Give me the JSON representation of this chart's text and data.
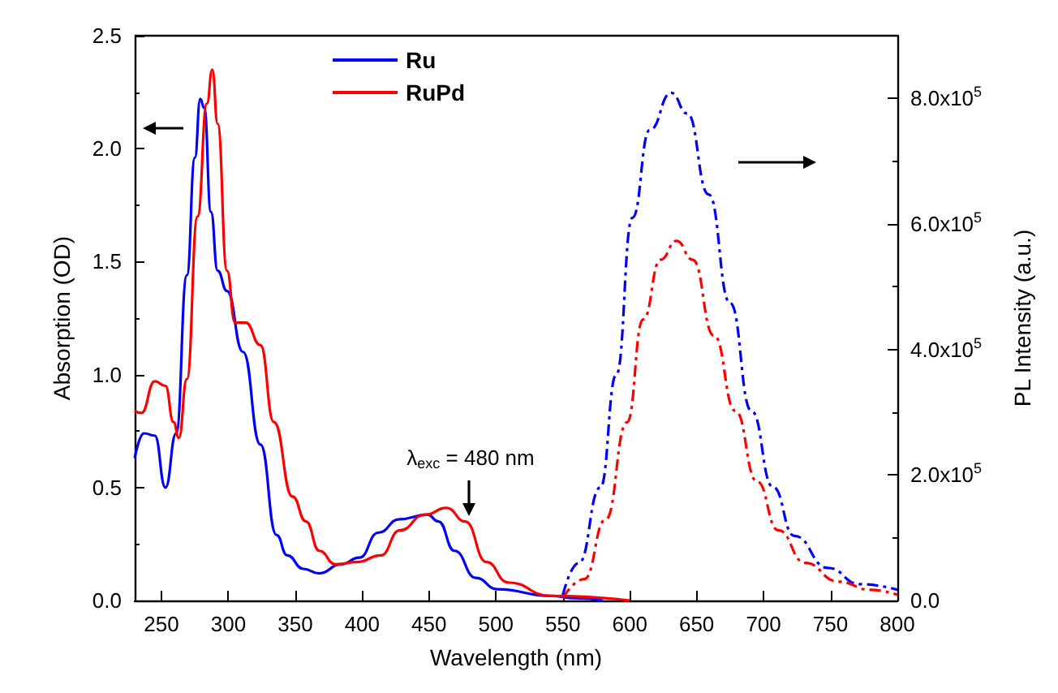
{
  "chart_data": {
    "type": "line",
    "xlabel": "Wavelength (nm)",
    "ylabel": "Absorption (OD)",
    "y2label": "PL Intensity (a.u.)",
    "xlim": [
      230,
      800
    ],
    "xticks": [
      250,
      300,
      350,
      400,
      450,
      500,
      550,
      600,
      650,
      700,
      750,
      800
    ],
    "ylim": [
      0,
      2.5
    ],
    "yticks": [
      {
        "value": 0,
        "label": "0.0"
      },
      {
        "value": 0.5,
        "label": "0.5"
      },
      {
        "value": 1,
        "label": "1.0"
      },
      {
        "value": 1.5,
        "label": "1.5"
      },
      {
        "value": 2,
        "label": "2.0"
      },
      {
        "value": 2.5,
        "label": "2.5"
      }
    ],
    "y2lim": [
      0,
      900000
    ],
    "y2ticks": [
      {
        "value": 0,
        "label": "0.0"
      },
      {
        "value": 200000,
        "label": "2.0x10$^{5}$"
      },
      {
        "value": 400000,
        "label": "4.0x10$^{5}$"
      },
      {
        "value": 600000,
        "label": "6.0x10$^{5}$"
      },
      {
        "value": 800000,
        "label": "8.0x10$^{5}$"
      }
    ],
    "legend": "top",
    "grid": false,
    "marker": "none",
    "annotations": [
      "λ$_{exc}$ = 480 nm"
    ],
    "series": [
      {
        "name": "Ru",
        "color": "#0000ff",
        "line_style": "solid",
        "x": [
          230,
          237,
          245,
          253,
          261,
          269,
          275,
          279,
          282,
          287,
          292,
          299,
          311,
          324,
          336,
          344,
          356,
          368,
          384,
          398,
          412,
          428,
          449,
          457,
          469,
          485,
          501,
          541,
          560,
          580
        ],
        "values": [
          0.63,
          0.74,
          0.73,
          0.5,
          0.74,
          1.44,
          1.96,
          2.22,
          2.18,
          1.72,
          1.46,
          1.37,
          1.1,
          0.69,
          0.29,
          0.2,
          0.14,
          0.12,
          0.16,
          0.19,
          0.3,
          0.36,
          0.38,
          0.35,
          0.22,
          0.1,
          0.05,
          0.02,
          0.01,
          0
        ]
      },
      {
        "name": "RuPd",
        "color": "#ff0000",
        "line_style": "solid",
        "x": [
          230,
          235,
          245,
          253,
          259,
          263,
          269,
          277,
          284,
          288,
          292,
          299,
          305,
          313,
          324,
          334,
          348,
          358,
          368,
          380,
          396,
          414,
          428,
          447,
          463,
          477,
          493,
          509,
          541,
          600
        ],
        "values": [
          0.84,
          0.83,
          0.97,
          0.95,
          0.79,
          0.72,
          0.98,
          1.7,
          2.2,
          2.35,
          2.11,
          1.46,
          1.23,
          1.23,
          1.13,
          0.79,
          0.46,
          0.35,
          0.22,
          0.16,
          0.17,
          0.2,
          0.31,
          0.38,
          0.41,
          0.35,
          0.17,
          0.08,
          0.02,
          0
        ]
      },
      {
        "color": "#0000ff",
        "axis": "y2",
        "line_style": "dashdot",
        "x": [
          550,
          562,
          578,
          590,
          602,
          615,
          631,
          643,
          659,
          675,
          691,
          707,
          723,
          748,
          772,
          800
        ],
        "values": [
          9000,
          60000,
          180000,
          360000,
          610000,
          750000,
          809000,
          776000,
          647000,
          474000,
          302000,
          181000,
          103000,
          52000,
          26000,
          17000
        ]
      },
      {
        "color": "#ff0000",
        "axis": "y2",
        "line_style": "dashdot",
        "x": [
          550,
          566,
          582,
          598,
          610,
          623,
          635,
          647,
          663,
          679,
          695,
          711,
          731,
          756,
          780,
          800
        ],
        "values": [
          4000,
          34000,
          129000,
          284000,
          448000,
          543000,
          573000,
          543000,
          422000,
          302000,
          190000,
          112000,
          60000,
          30000,
          17000,
          9000
        ]
      }
    ]
  }
}
